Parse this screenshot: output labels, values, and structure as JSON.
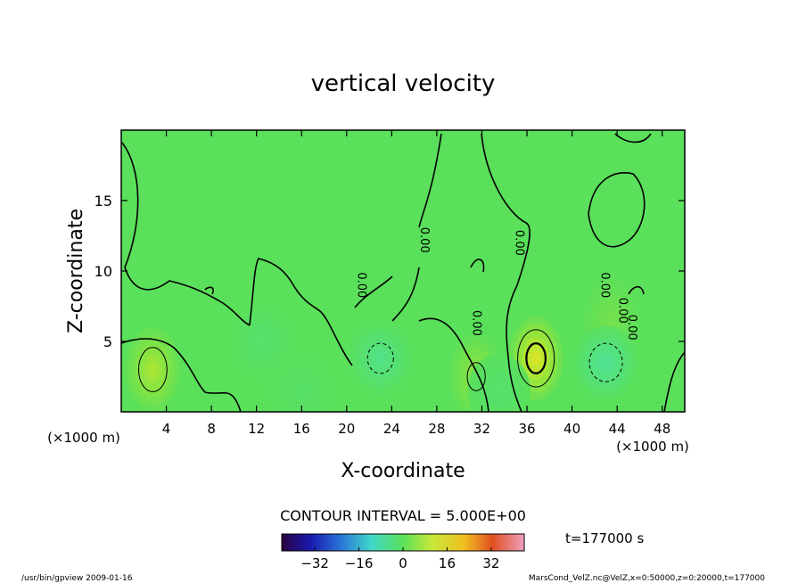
{
  "chart_data": {
    "type": "heatmap",
    "title": "vertical velocity",
    "xlabel": "X-coordinate",
    "ylabel": "Z-coordinate",
    "x_unit_left": "(×1000 m)",
    "x_unit_right": "(×1000 m)",
    "xlim": [
      0,
      50
    ],
    "ylim": [
      0,
      20
    ],
    "x_ticks": [
      4,
      8,
      12,
      16,
      20,
      24,
      28,
      32,
      36,
      40,
      44,
      48
    ],
    "y_ticks": [
      5,
      10,
      15
    ],
    "contour_interval_label": "CONTOUR INTERVAL = 5.000E+00",
    "time_label": "t=177000 s",
    "colorbar": {
      "range": [
        -44,
        44
      ],
      "ticks": [
        -32,
        -16,
        0,
        16,
        32
      ],
      "tick_labels": [
        "−32",
        "−16",
        "0",
        "16",
        "32"
      ]
    },
    "zero_contour_labels": [
      "0.00",
      "0.00",
      "0.00",
      "0.00",
      "0.00",
      "0.00",
      "0.00"
    ],
    "updrafts": [
      {
        "x": 2.8,
        "z": 3.0,
        "peak": 9
      },
      {
        "x": 31.5,
        "z": 2.5,
        "peak": 6
      },
      {
        "x": 36.8,
        "z": 3.8,
        "peak": 14
      },
      {
        "x": 43.5,
        "z": 6.5,
        "peak": 3
      }
    ],
    "downdrafts": [
      {
        "x": 12.5,
        "z": 5.0,
        "peak": -3
      },
      {
        "x": 16.0,
        "z": 1.5,
        "peak": -2
      },
      {
        "x": 23.0,
        "z": 3.8,
        "peak": -7
      },
      {
        "x": 33.5,
        "z": 1.5,
        "peak": -3
      },
      {
        "x": 43.0,
        "z": 3.5,
        "peak": -9
      }
    ],
    "background_value": 0
  },
  "footer": {
    "left": "/usr/bin/gpview  2009-01-16",
    "right": "MarsCond_VelZ.nc@VelZ,x=0:50000,z=0:20000,t=177000"
  }
}
